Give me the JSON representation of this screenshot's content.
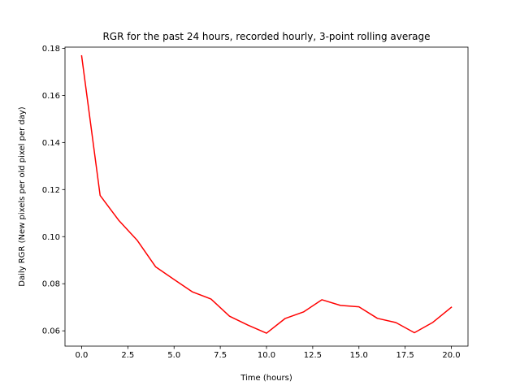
{
  "chart_data": {
    "type": "line",
    "title": "RGR for the past 24 hours, recorded hourly, 3-point rolling average",
    "xlabel": "Time (hours)",
    "ylabel": "Daily RGR (New pixels per old pixel per day)",
    "xlim": [
      -0.9,
      20.9
    ],
    "ylim": [
      0.0535,
      0.1805
    ],
    "xticks": [
      0.0,
      2.5,
      5.0,
      7.5,
      10.0,
      12.5,
      15.0,
      17.5,
      20.0
    ],
    "xtick_labels": [
      "0.0",
      "2.5",
      "5.0",
      "7.5",
      "10.0",
      "12.5",
      "15.0",
      "17.5",
      "20.0"
    ],
    "yticks": [
      0.06,
      0.08,
      0.1,
      0.12,
      0.14,
      0.16,
      0.18
    ],
    "ytick_labels": [
      "0.06",
      "0.08",
      "0.10",
      "0.12",
      "0.14",
      "0.16",
      "0.18"
    ],
    "grid": false,
    "series": [
      {
        "color": "#ff0000",
        "x": [
          0,
          1,
          2,
          3,
          4,
          5,
          6,
          7,
          8,
          9,
          10,
          11,
          12,
          13,
          14,
          15,
          16,
          17,
          18,
          19,
          20
        ],
        "y": [
          0.1768,
          0.1175,
          0.107,
          0.0985,
          0.0872,
          0.0818,
          0.0765,
          0.0735,
          0.0662,
          0.0624,
          0.059,
          0.0652,
          0.068,
          0.0732,
          0.0708,
          0.0702,
          0.0653,
          0.0635,
          0.0592,
          0.0636,
          0.07
        ]
      }
    ]
  }
}
